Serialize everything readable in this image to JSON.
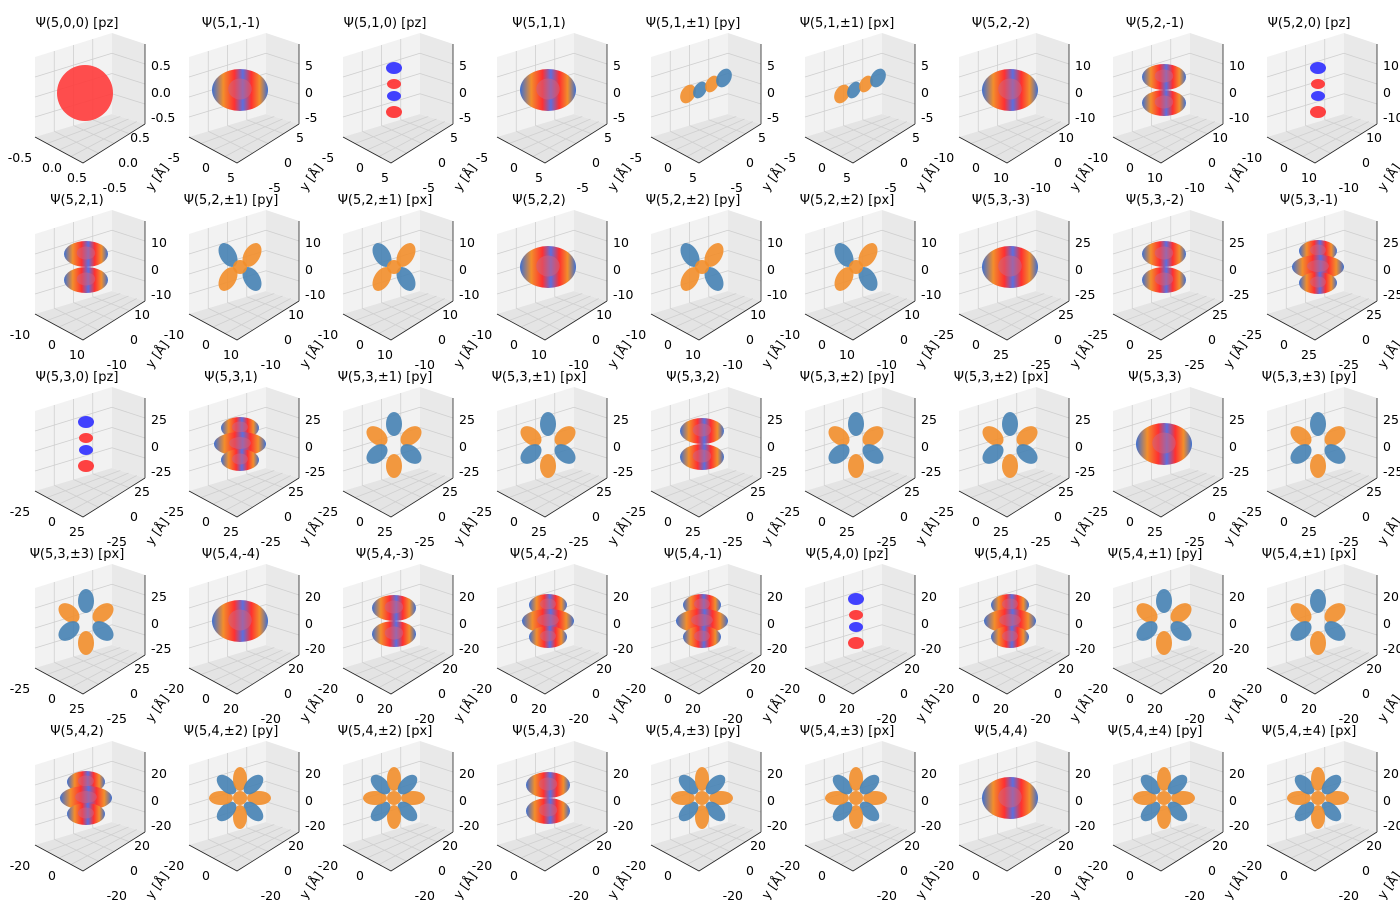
{
  "figure": {
    "columns": 9,
    "rows": 5,
    "axis_label_y": "y [Å]",
    "colors": {
      "positive": "#f28e2b",
      "negative": "#4682b4",
      "pz_pos": "#ff2d2d",
      "pz_neg": "#2d2dff",
      "pane": "#f2f2f2",
      "grid": "#cfcfcf"
    }
  },
  "chart_data": {
    "type": "other",
    "description_kind": "3d-orbital-isosurface-grid",
    "panels": [
      {
        "title": "Ψ(5,0,0) [pz]",
        "shape": "sphere",
        "xticks": [
          "-0.5",
          "0.0",
          "0.5"
        ],
        "yticks": [
          "-0.5",
          "0.0",
          "0.5"
        ],
        "zticks": [
          "0.5",
          "0.0",
          "-0.5"
        ]
      },
      {
        "title": "Ψ(5,1,-1)",
        "shape": "torus",
        "xticks": [
          "-5",
          "0",
          "5"
        ],
        "yticks": [
          "-5",
          "0",
          "5"
        ],
        "zticks": [
          "5",
          "0",
          "-5"
        ]
      },
      {
        "title": "Ψ(5,1,0) [pz]",
        "shape": "pz",
        "xticks": [
          "-5",
          "0",
          "5"
        ],
        "yticks": [
          "-5",
          "0",
          "5"
        ],
        "zticks": [
          "5",
          "0",
          "-5"
        ]
      },
      {
        "title": "Ψ(5,1,1)",
        "shape": "torus",
        "xticks": [
          "-5",
          "0",
          "5"
        ],
        "yticks": [
          "-5",
          "0",
          "5"
        ],
        "zticks": [
          "5",
          "0",
          "-5"
        ]
      },
      {
        "title": "Ψ(5,1,±1) [py]",
        "shape": "lobes2",
        "xticks": [
          "-5",
          "0",
          "5"
        ],
        "yticks": [
          "-5",
          "0",
          "5"
        ],
        "zticks": [
          "5",
          "0",
          "-5"
        ]
      },
      {
        "title": "Ψ(5,1,±1) [px]",
        "shape": "lobes2",
        "xticks": [
          "-5",
          "0",
          "5"
        ],
        "yticks": [
          "-5",
          "0",
          "5"
        ],
        "zticks": [
          "5",
          "0",
          "-5"
        ]
      },
      {
        "title": "Ψ(5,2,-2)",
        "shape": "torus",
        "xticks": [
          "-10",
          "0",
          "10"
        ],
        "yticks": [
          "-10",
          "0",
          "10"
        ],
        "zticks": [
          "10",
          "0",
          "-10"
        ]
      },
      {
        "title": "Ψ(5,2,-1)",
        "shape": "torus2",
        "xticks": [
          "-10",
          "0",
          "10"
        ],
        "yticks": [
          "-10",
          "0",
          "10"
        ],
        "zticks": [
          "10",
          "0",
          "-10"
        ]
      },
      {
        "title": "Ψ(5,2,0) [pz]",
        "shape": "pz",
        "xticks": [
          "-10",
          "0",
          "10"
        ],
        "yticks": [
          "-10",
          "0",
          "10"
        ],
        "zticks": [
          "10",
          "0",
          "-10"
        ]
      },
      {
        "title": "Ψ(5,2,1)",
        "shape": "torus2",
        "xticks": [
          "-10",
          "0",
          "10"
        ],
        "yticks": [
          "-10",
          "0",
          "10"
        ],
        "zticks": [
          "10",
          "0",
          "-10"
        ]
      },
      {
        "title": "Ψ(5,2,±1) [py]",
        "shape": "lobes4",
        "xticks": [
          "-10",
          "0",
          "10"
        ],
        "yticks": [
          "-10",
          "0",
          "10"
        ],
        "zticks": [
          "10",
          "0",
          "-10"
        ]
      },
      {
        "title": "Ψ(5,2,±1) [px]",
        "shape": "lobes4",
        "xticks": [
          "-10",
          "0",
          "10"
        ],
        "yticks": [
          "-10",
          "0",
          "10"
        ],
        "zticks": [
          "10",
          "0",
          "-10"
        ]
      },
      {
        "title": "Ψ(5,2,2)",
        "shape": "torus",
        "xticks": [
          "-10",
          "0",
          "10"
        ],
        "yticks": [
          "-10",
          "0",
          "10"
        ],
        "zticks": [
          "10",
          "0",
          "-10"
        ]
      },
      {
        "title": "Ψ(5,2,±2) [py]",
        "shape": "lobes4",
        "xticks": [
          "-10",
          "0",
          "10"
        ],
        "yticks": [
          "-10",
          "0",
          "10"
        ],
        "zticks": [
          "10",
          "0",
          "-10"
        ]
      },
      {
        "title": "Ψ(5,2,±2) [px]",
        "shape": "lobes4",
        "xticks": [
          "-10",
          "0",
          "10"
        ],
        "yticks": [
          "-10",
          "0",
          "10"
        ],
        "zticks": [
          "10",
          "0",
          "-10"
        ]
      },
      {
        "title": "Ψ(5,3,-3)",
        "shape": "torus",
        "xticks": [
          "-25",
          "0",
          "25"
        ],
        "yticks": [
          "-25",
          "0",
          "25"
        ],
        "zticks": [
          "25",
          "0",
          "-25"
        ]
      },
      {
        "title": "Ψ(5,3,-2)",
        "shape": "torus2",
        "xticks": [
          "-25",
          "0",
          "25"
        ],
        "yticks": [
          "-25",
          "0",
          "25"
        ],
        "zticks": [
          "25",
          "0",
          "-25"
        ]
      },
      {
        "title": "Ψ(5,3,-1)",
        "shape": "torus3",
        "xticks": [
          "-25",
          "0",
          "25"
        ],
        "yticks": [
          "-25",
          "0",
          "25"
        ],
        "zticks": [
          "25",
          "0",
          "-25"
        ]
      },
      {
        "title": "Ψ(5,3,0) [pz]",
        "shape": "pz",
        "xticks": [
          "-25",
          "0",
          "25"
        ],
        "yticks": [
          "-25",
          "0",
          "25"
        ],
        "zticks": [
          "25",
          "0",
          "-25"
        ]
      },
      {
        "title": "Ψ(5,3,1)",
        "shape": "torus3",
        "xticks": [
          "-25",
          "0",
          "25"
        ],
        "yticks": [
          "-25",
          "0",
          "25"
        ],
        "zticks": [
          "25",
          "0",
          "-25"
        ]
      },
      {
        "title": "Ψ(5,3,±1) [py]",
        "shape": "lobes6",
        "xticks": [
          "-25",
          "0",
          "25"
        ],
        "yticks": [
          "-25",
          "0",
          "25"
        ],
        "zticks": [
          "25",
          "0",
          "-25"
        ]
      },
      {
        "title": "Ψ(5,3,±1) [px]",
        "shape": "lobes6",
        "xticks": [
          "-25",
          "0",
          "25"
        ],
        "yticks": [
          "-25",
          "0",
          "25"
        ],
        "zticks": [
          "25",
          "0",
          "-25"
        ]
      },
      {
        "title": "Ψ(5,3,2)",
        "shape": "torus2",
        "xticks": [
          "-25",
          "0",
          "25"
        ],
        "yticks": [
          "-25",
          "0",
          "25"
        ],
        "zticks": [
          "25",
          "0",
          "-25"
        ]
      },
      {
        "title": "Ψ(5,3,±2) [py]",
        "shape": "lobes6",
        "xticks": [
          "-25",
          "0",
          "25"
        ],
        "yticks": [
          "-25",
          "0",
          "25"
        ],
        "zticks": [
          "25",
          "0",
          "-25"
        ]
      },
      {
        "title": "Ψ(5,3,±2) [px]",
        "shape": "lobes6",
        "xticks": [
          "-25",
          "0",
          "25"
        ],
        "yticks": [
          "-25",
          "0",
          "25"
        ],
        "zticks": [
          "25",
          "0",
          "-25"
        ]
      },
      {
        "title": "Ψ(5,3,3)",
        "shape": "torus",
        "xticks": [
          "-25",
          "0",
          "25"
        ],
        "yticks": [
          "-25",
          "0",
          "25"
        ],
        "zticks": [
          "25",
          "0",
          "-25"
        ]
      },
      {
        "title": "Ψ(5,3,±3) [py]",
        "shape": "lobes6",
        "xticks": [
          "-25",
          "0",
          "25"
        ],
        "yticks": [
          "-25",
          "0",
          "25"
        ],
        "zticks": [
          "25",
          "0",
          "-25"
        ]
      },
      {
        "title": "Ψ(5,3,±3) [px]",
        "shape": "lobes6",
        "xticks": [
          "-25",
          "0",
          "25"
        ],
        "yticks": [
          "-25",
          "0",
          "25"
        ],
        "zticks": [
          "25",
          "0",
          "-25"
        ]
      },
      {
        "title": "Ψ(5,4,-4)",
        "shape": "torus",
        "xticks": [
          "-20",
          "0",
          "20"
        ],
        "yticks": [
          "-20",
          "0",
          "20"
        ],
        "zticks": [
          "20",
          "0",
          "-20"
        ]
      },
      {
        "title": "Ψ(5,4,-3)",
        "shape": "torus2",
        "xticks": [
          "-20",
          "0",
          "20"
        ],
        "yticks": [
          "-20",
          "0",
          "20"
        ],
        "zticks": [
          "20",
          "0",
          "-20"
        ]
      },
      {
        "title": "Ψ(5,4,-2)",
        "shape": "torus3",
        "xticks": [
          "-20",
          "0",
          "20"
        ],
        "yticks": [
          "-20",
          "0",
          "20"
        ],
        "zticks": [
          "20",
          "0",
          "-20"
        ]
      },
      {
        "title": "Ψ(5,4,-1)",
        "shape": "torus3",
        "xticks": [
          "-20",
          "0",
          "20"
        ],
        "yticks": [
          "-20",
          "0",
          "20"
        ],
        "zticks": [
          "20",
          "0",
          "-20"
        ]
      },
      {
        "title": "Ψ(5,4,0) [pz]",
        "shape": "pz",
        "xticks": [
          "-20",
          "0",
          "20"
        ],
        "yticks": [
          "-20",
          "0",
          "20"
        ],
        "zticks": [
          "20",
          "0",
          "-20"
        ]
      },
      {
        "title": "Ψ(5,4,1)",
        "shape": "torus3",
        "xticks": [
          "-20",
          "0",
          "20"
        ],
        "yticks": [
          "-20",
          "0",
          "20"
        ],
        "zticks": [
          "20",
          "0",
          "-20"
        ]
      },
      {
        "title": "Ψ(5,4,±1) [py]",
        "shape": "lobes6",
        "xticks": [
          "-20",
          "0",
          "20"
        ],
        "yticks": [
          "-20",
          "0",
          "20"
        ],
        "zticks": [
          "20",
          "0",
          "-20"
        ]
      },
      {
        "title": "Ψ(5,4,±1) [px]",
        "shape": "lobes6",
        "xticks": [
          "-20",
          "0",
          "20"
        ],
        "yticks": [
          "-20",
          "0",
          "20"
        ],
        "zticks": [
          "20",
          "0",
          "-20"
        ]
      },
      {
        "title": "Ψ(5,4,2)",
        "shape": "torus3",
        "xticks": [
          "-20",
          "0",
          "20"
        ],
        "yticks": [
          "-20",
          "0",
          "20"
        ],
        "zticks": [
          "20",
          "0",
          "-20"
        ]
      },
      {
        "title": "Ψ(5,4,±2) [py]",
        "shape": "lobes8",
        "xticks": [
          "-20",
          "0",
          "20"
        ],
        "yticks": [
          "-20",
          "0",
          "20"
        ],
        "zticks": [
          "20",
          "0",
          "-20"
        ]
      },
      {
        "title": "Ψ(5,4,±2) [px]",
        "shape": "lobes8",
        "xticks": [
          "-20",
          "0",
          "20"
        ],
        "yticks": [
          "-20",
          "0",
          "20"
        ],
        "zticks": [
          "20",
          "0",
          "-20"
        ]
      },
      {
        "title": "Ψ(5,4,3)",
        "shape": "torus2",
        "xticks": [
          "-20",
          "0",
          "20"
        ],
        "yticks": [
          "-20",
          "0",
          "20"
        ],
        "zticks": [
          "20",
          "0",
          "-20"
        ]
      },
      {
        "title": "Ψ(5,4,±3) [py]",
        "shape": "lobes8",
        "xticks": [
          "-20",
          "0",
          "20"
        ],
        "yticks": [
          "-20",
          "0",
          "20"
        ],
        "zticks": [
          "20",
          "0",
          "-20"
        ]
      },
      {
        "title": "Ψ(5,4,±3) [px]",
        "shape": "lobes8",
        "xticks": [
          "-20",
          "0",
          "20"
        ],
        "yticks": [
          "-20",
          "0",
          "20"
        ],
        "zticks": [
          "20",
          "0",
          "-20"
        ]
      },
      {
        "title": "Ψ(5,4,4)",
        "shape": "torus",
        "xticks": [
          "-20",
          "0",
          "20"
        ],
        "yticks": [
          "-20",
          "0",
          "20"
        ],
        "zticks": [
          "20",
          "0",
          "-20"
        ]
      },
      {
        "title": "Ψ(5,4,±4) [py]",
        "shape": "lobes8",
        "xticks": [
          "-20",
          "0",
          "20"
        ],
        "yticks": [
          "-20",
          "0",
          "20"
        ],
        "zticks": [
          "20",
          "0",
          "-20"
        ]
      },
      {
        "title": "Ψ(5,4,±4) [px]",
        "shape": "lobes8",
        "xticks": [
          "-20",
          "0",
          "20"
        ],
        "yticks": [
          "-20",
          "0",
          "20"
        ],
        "zticks": [
          "20",
          "0",
          "-20"
        ]
      }
    ]
  }
}
